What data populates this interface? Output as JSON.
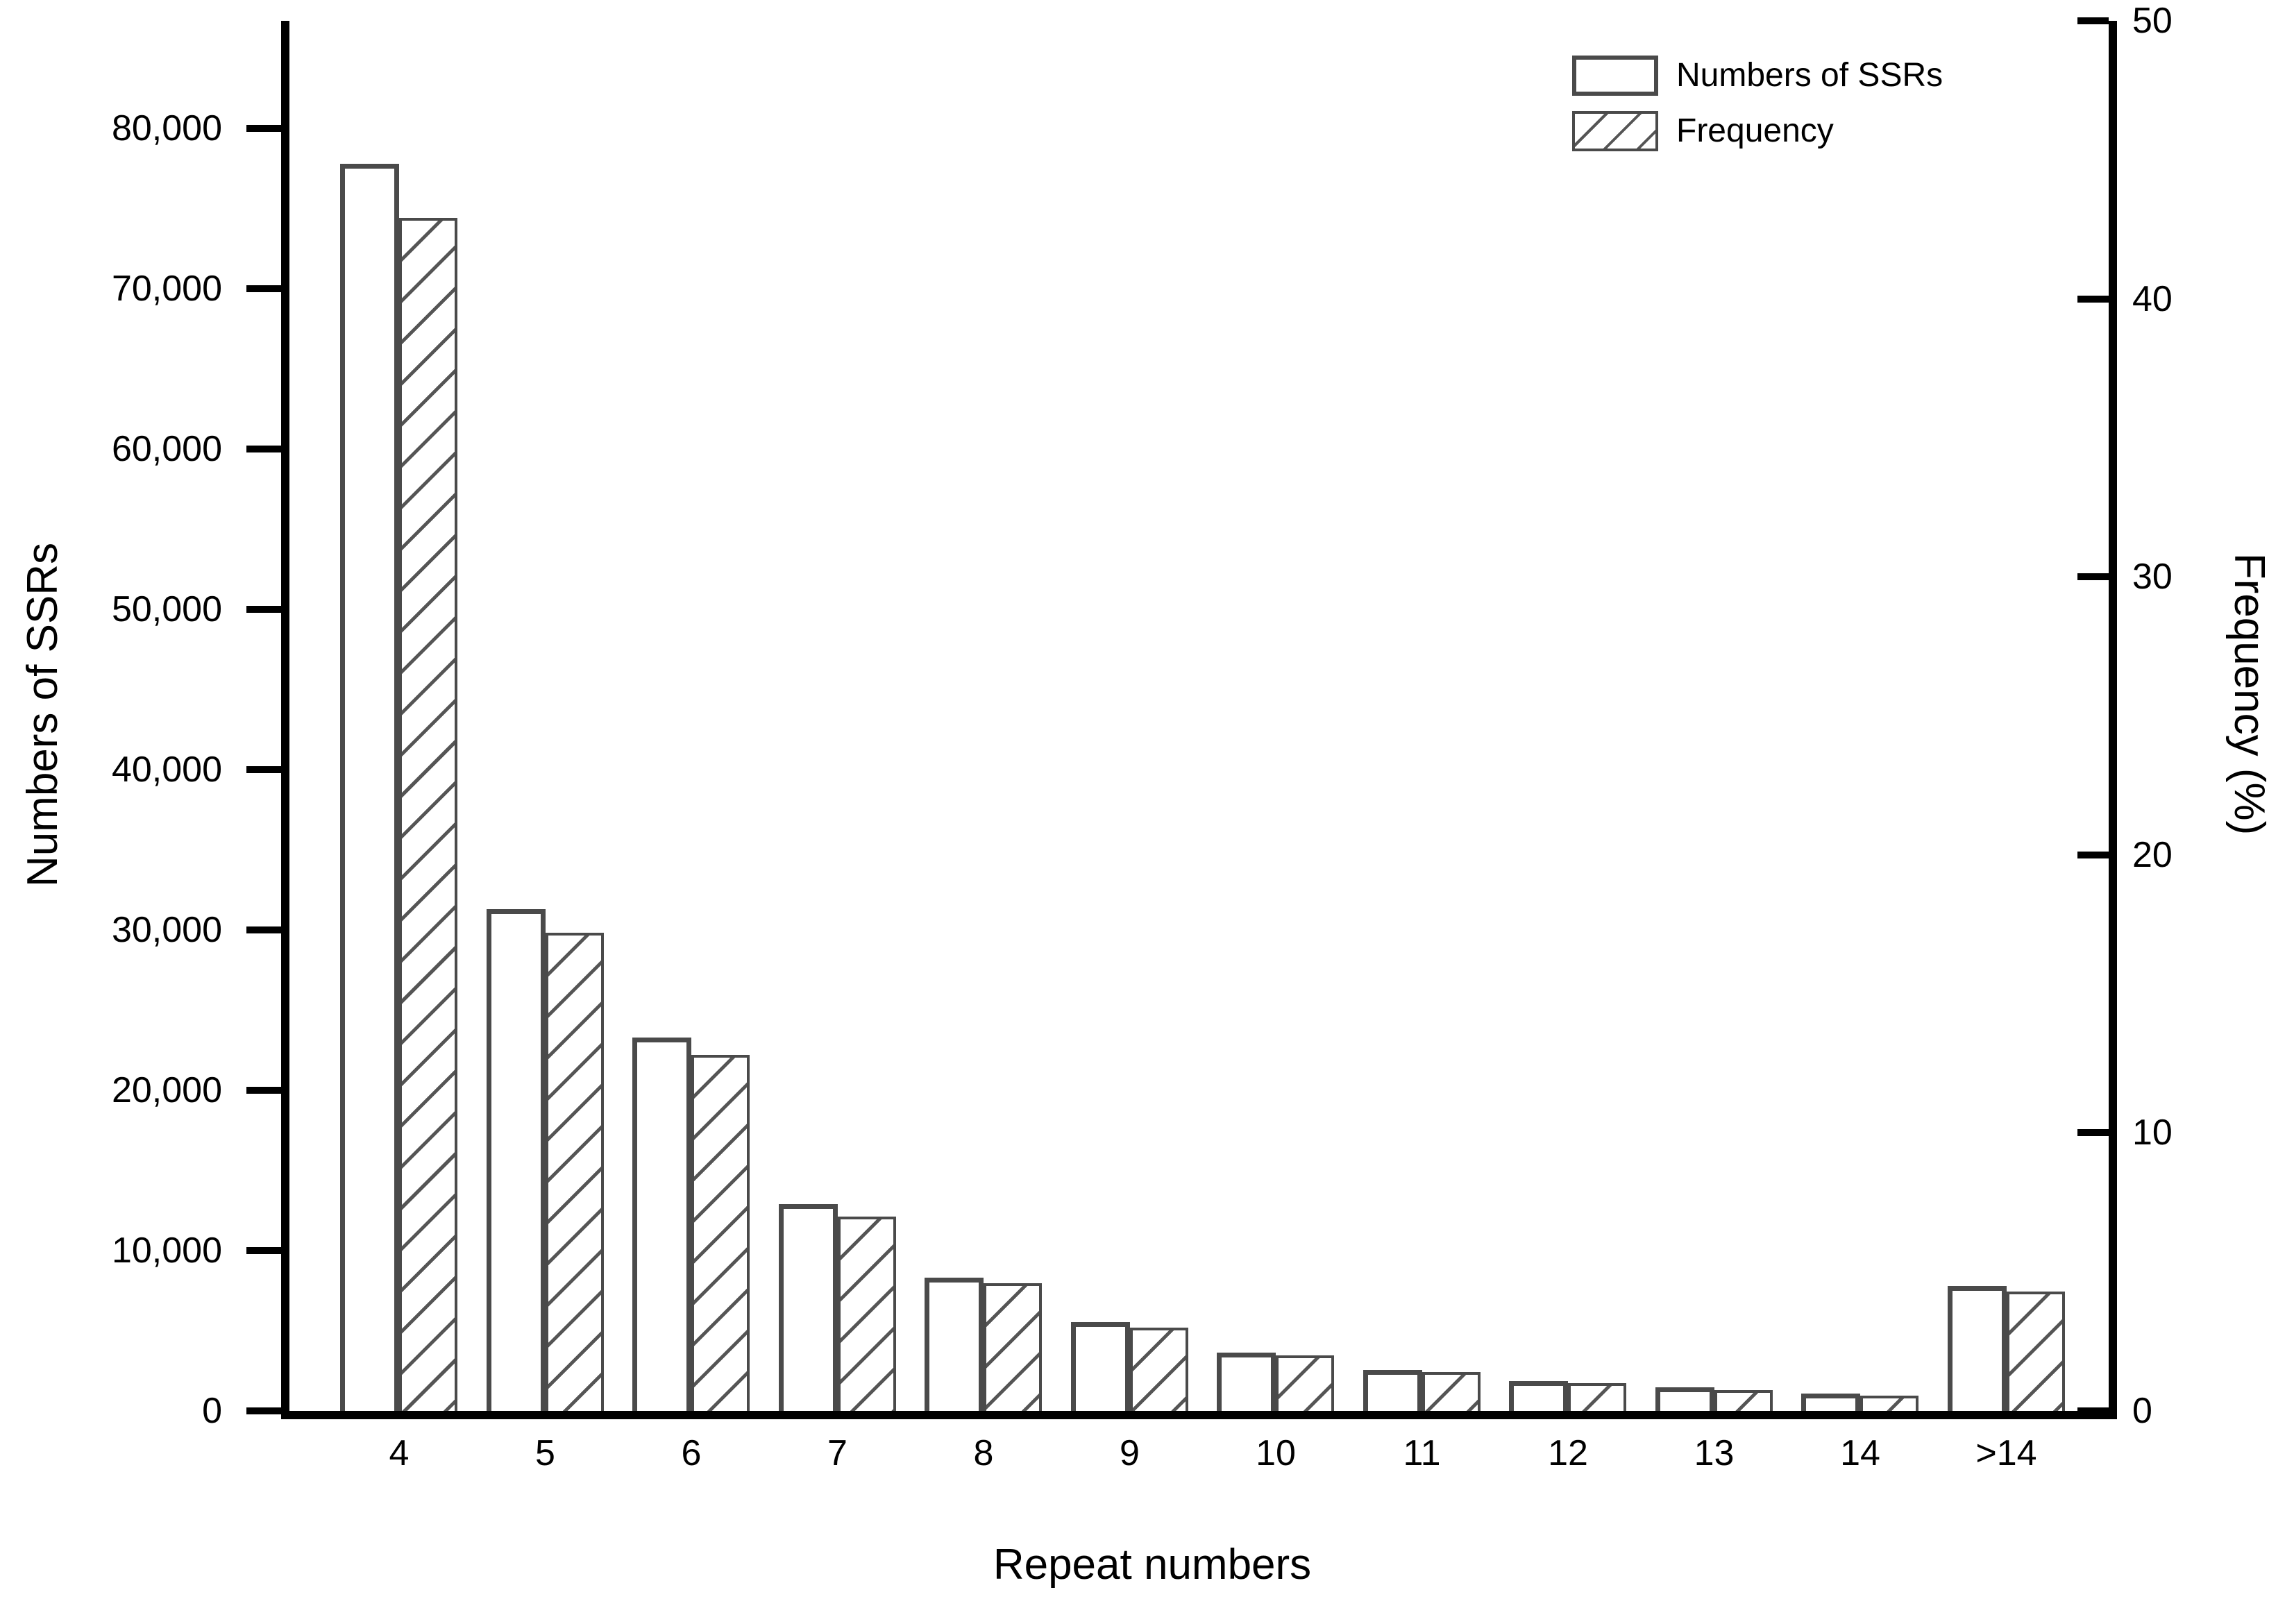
{
  "chart_data": {
    "type": "bar",
    "categories": [
      "4",
      "5",
      "6",
      "7",
      "8",
      "9",
      "10",
      "11",
      "12",
      "13",
      "14",
      ">14"
    ],
    "series": [
      {
        "name": "Numbers of SSRs",
        "axis": "left",
        "style": "plain",
        "values": [
          77800,
          31300,
          23300,
          12900,
          8300,
          5550,
          3650,
          2550,
          1860,
          1470,
          1080,
          7800
        ]
      },
      {
        "name": "Frequency",
        "axis": "right",
        "style": "hatched",
        "values": [
          42.9,
          17.2,
          12.8,
          7.0,
          4.6,
          3.0,
          2.0,
          1.4,
          1.0,
          0.75,
          0.55,
          4.3
        ]
      }
    ],
    "xlabel": "Repeat numbers",
    "ylabel_left": "Numbers of SSRs",
    "ylabel_right": "Frequency (%)",
    "left_axis": {
      "min": 0,
      "max": 86700,
      "ticks": [
        0,
        10000,
        20000,
        30000,
        40000,
        50000,
        60000,
        70000,
        80000
      ],
      "tick_labels": [
        "0",
        "10,000",
        "20,000",
        "30,000",
        "40,000",
        "50,000",
        "60,000",
        "70,000",
        "80,000"
      ]
    },
    "right_axis": {
      "min": 0,
      "max": 50,
      "ticks": [
        0,
        10,
        20,
        30,
        40,
        50
      ],
      "tick_labels": [
        "0",
        "10",
        "20",
        "30",
        "40",
        "50"
      ]
    },
    "legend": {
      "position": "top-right",
      "entries": [
        "Numbers of SSRs",
        "Frequency"
      ]
    },
    "grid": false,
    "colors": {
      "bar_border": "#4a4a4a",
      "hatch": "#555555",
      "axis": "#000000",
      "text": "#000000",
      "background": "#ffffff"
    }
  }
}
